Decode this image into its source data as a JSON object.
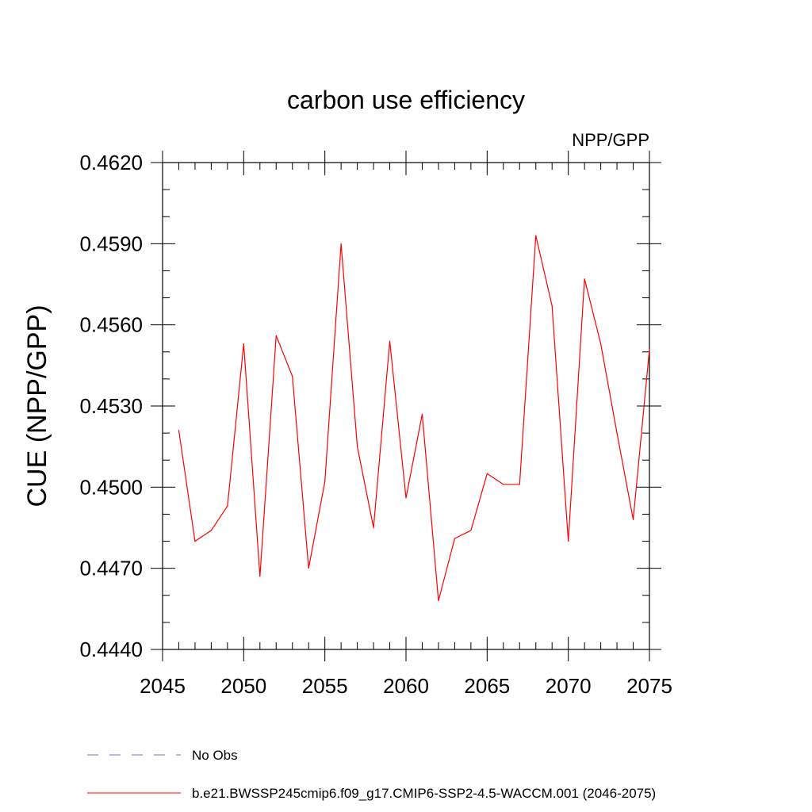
{
  "chart_data": {
    "type": "line",
    "title": "carbon use efficiency",
    "subtitle": "NPP/GPP",
    "ylabel": "CUE  (NPP/GPP)",
    "xlabel": "",
    "xlim": [
      2045,
      2075
    ],
    "ylim": [
      0.444,
      0.462
    ],
    "x_major_ticks": [
      2045,
      2050,
      2055,
      2060,
      2065,
      2070,
      2075
    ],
    "x_minor_step": 1,
    "y_major_ticks": [
      0.444,
      0.447,
      0.45,
      0.453,
      0.456,
      0.459,
      0.462
    ],
    "y_tick_labels": [
      "0.4440",
      "0.4470",
      "0.4500",
      "0.4530",
      "0.4560",
      "0.4590",
      "0.4620"
    ],
    "y_minor_step": 0.001,
    "grid": false,
    "legend_position": "bottom",
    "series": [
      {
        "name": "b.e21.BWSSP245cmip6.f09_g17.CMIP6-SSP2-4.5-WACCM.001 (2046-2075)",
        "color": "#ff0000",
        "style": "solid",
        "x": [
          2046,
          2047,
          2048,
          2049,
          2050,
          2051,
          2052,
          2053,
          2054,
          2055,
          2056,
          2057,
          2058,
          2059,
          2060,
          2061,
          2062,
          2063,
          2064,
          2065,
          2066,
          2067,
          2068,
          2069,
          2070,
          2071,
          2072,
          2073,
          2074,
          2075
        ],
        "y": [
          0.4521,
          0.448,
          0.4484,
          0.4493,
          0.4553,
          0.4467,
          0.4556,
          0.4541,
          0.447,
          0.4502,
          0.459,
          0.4515,
          0.4485,
          0.4554,
          0.4496,
          0.4527,
          0.4458,
          0.4481,
          0.4484,
          0.4505,
          0.4501,
          0.4501,
          0.4593,
          0.4567,
          0.448,
          0.4577,
          0.4553,
          0.452,
          0.4488,
          0.4551
        ]
      }
    ],
    "legend": [
      {
        "label": "No Obs",
        "color": "#7a72b8",
        "style": "dashed"
      },
      {
        "label": "b.e21.BWSSP245cmip6.f09_g17.CMIP6-SSP2-4.5-WACCM.001 (2046-2075)",
        "color": "#ff0000",
        "style": "solid"
      }
    ]
  }
}
